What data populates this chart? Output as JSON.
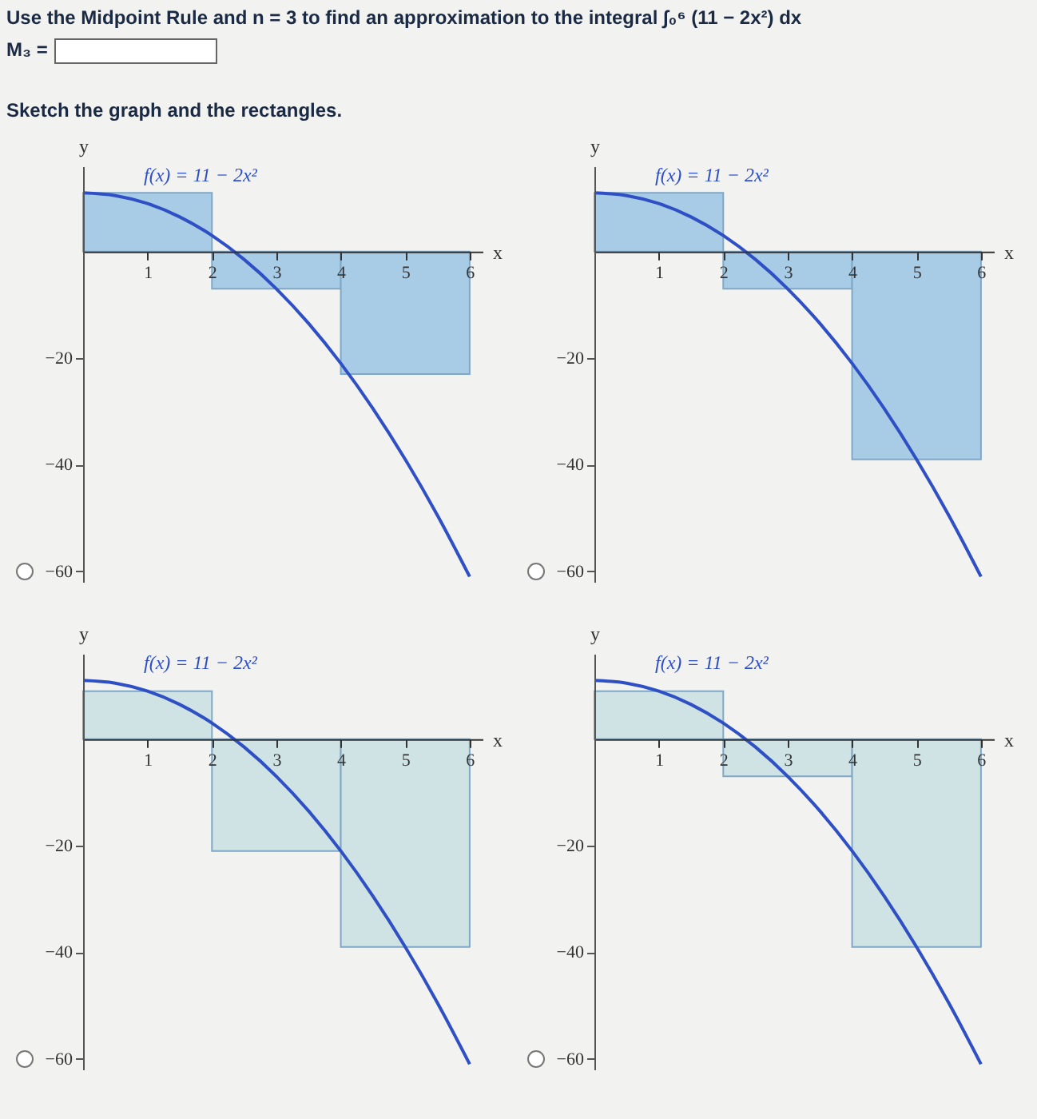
{
  "chart_data": [
    {
      "type": "line",
      "title": "Use the Midpoint Rule and n = 3 to find an approximation to the integral ∫₀⁶ (11 − 2x²) dx",
      "annotations": [
        "M₃ =",
        "Sketch the graph and the rectangles."
      ],
      "xlabel": "x",
      "ylabel": "y",
      "xlim": [
        0,
        6.2
      ],
      "ylim": [
        -62,
        16
      ],
      "xticks": [
        1,
        2,
        3,
        4,
        5,
        6
      ],
      "yticks": [
        -60,
        -40,
        -20
      ],
      "series": [
        {
          "type": "histogram",
          "bins": [
            0,
            2,
            4,
            6
          ],
          "values": [
            11,
            -7,
            -23
          ],
          "color": "#a9cce6"
        },
        {
          "type": "line",
          "name": "f(x) = 11 − 2x²",
          "color": "#2f4fc4",
          "x": [
            0,
            0.5,
            1,
            1.5,
            2,
            2.5,
            3,
            3.5,
            4,
            4.5,
            5,
            5.5,
            6
          ],
          "values": [
            11,
            10.5,
            9,
            6.5,
            3,
            -1.5,
            -7,
            -13.5,
            -21,
            -29.5,
            -39,
            -49.5,
            -61
          ]
        }
      ]
    },
    {
      "type": "line",
      "xlabel": "x",
      "ylabel": "y",
      "xlim": [
        0,
        6.2
      ],
      "ylim": [
        -62,
        16
      ],
      "xticks": [
        1,
        2,
        3,
        4,
        5,
        6
      ],
      "yticks": [
        -60,
        -40,
        -20
      ],
      "series": [
        {
          "type": "histogram",
          "bins": [
            0,
            2,
            4,
            6
          ],
          "values": [
            11,
            -7,
            -39
          ],
          "color": "#a9cce6"
        },
        {
          "type": "line",
          "name": "f(x) = 11 − 2x²",
          "color": "#2f4fc4",
          "x": [
            0,
            0.5,
            1,
            1.5,
            2,
            2.5,
            3,
            3.5,
            4,
            4.5,
            5,
            5.5,
            6
          ],
          "values": [
            11,
            10.5,
            9,
            6.5,
            3,
            -1.5,
            -7,
            -13.5,
            -21,
            -29.5,
            -39,
            -49.5,
            -61
          ]
        }
      ]
    },
    {
      "type": "line",
      "xlabel": "x",
      "ylabel": "y",
      "xlim": [
        0,
        6.2
      ],
      "ylim": [
        -62,
        16
      ],
      "xticks": [
        1,
        2,
        3,
        4,
        5,
        6
      ],
      "yticks": [
        -60,
        -40,
        -20
      ],
      "series": [
        {
          "type": "histogram",
          "bins": [
            0,
            2,
            4,
            6
          ],
          "values": [
            9,
            -21,
            -39
          ],
          "color": "#cfe2e4"
        },
        {
          "type": "line",
          "name": "f(x) = 11 − 2x²",
          "color": "#2f4fc4",
          "x": [
            0,
            0.5,
            1,
            1.5,
            2,
            2.5,
            3,
            3.5,
            4,
            4.5,
            5,
            5.5,
            6
          ],
          "values": [
            11,
            10.5,
            9,
            6.5,
            3,
            -1.5,
            -7,
            -13.5,
            -21,
            -29.5,
            -39,
            -49.5,
            -61
          ]
        }
      ]
    },
    {
      "type": "line",
      "xlabel": "x",
      "ylabel": "y",
      "xlim": [
        0,
        6.2
      ],
      "ylim": [
        -62,
        16
      ],
      "xticks": [
        1,
        2,
        3,
        4,
        5,
        6
      ],
      "yticks": [
        -60,
        -40,
        -20
      ],
      "series": [
        {
          "type": "histogram",
          "bins": [
            0,
            2,
            4,
            6
          ],
          "values": [
            9,
            -7,
            -39
          ],
          "color": "#cfe2e4"
        },
        {
          "type": "line",
          "name": "f(x) = 11 − 2x²",
          "color": "#2f4fc4",
          "x": [
            0,
            0.5,
            1,
            1.5,
            2,
            2.5,
            3,
            3.5,
            4,
            4.5,
            5,
            5.5,
            6
          ],
          "values": [
            11,
            10.5,
            9,
            6.5,
            3,
            -1.5,
            -7,
            -13.5,
            -21,
            -29.5,
            -39,
            -49.5,
            -61
          ]
        }
      ]
    }
  ]
}
